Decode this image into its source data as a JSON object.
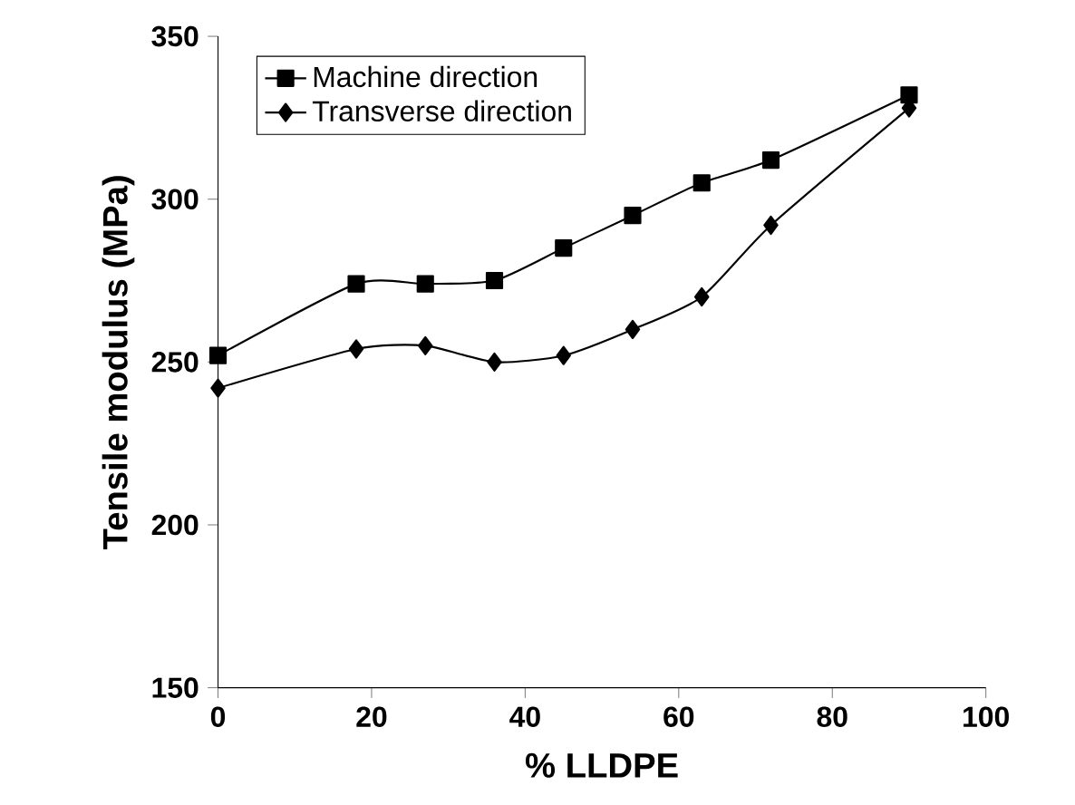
{
  "chart_data": {
    "type": "line",
    "xlabel": "% LLDPE",
    "ylabel": "Tensile modulus (MPa)",
    "x": [
      0,
      18,
      27,
      36,
      45,
      54,
      63,
      72,
      90
    ],
    "series": [
      {
        "name": "Machine direction",
        "color": "#000000",
        "marker": "square",
        "values": [
          252,
          274,
          274,
          275,
          285,
          295,
          305,
          312,
          332
        ]
      },
      {
        "name": "Transverse direction",
        "color": "#000000",
        "marker": "diamond",
        "values": [
          242,
          254,
          255,
          250,
          252,
          260,
          270,
          292,
          328
        ]
      }
    ],
    "xlim": [
      0,
      100
    ],
    "xticks": [
      0,
      20,
      40,
      60,
      80,
      100
    ],
    "ylim": [
      150,
      350
    ],
    "yticks": [
      150,
      200,
      250,
      300,
      350
    ],
    "legend": "top left",
    "grid": false,
    "line_style": "solid"
  }
}
